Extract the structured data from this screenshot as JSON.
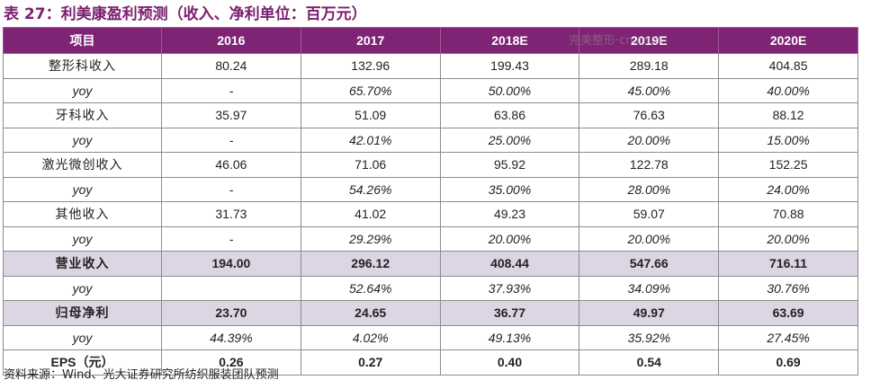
{
  "title": "表 27：利美康盈利预测（收入、净利单位：百万元）",
  "watermark": "完美整形·cn.com",
  "header": [
    "项目",
    "2016",
    "2017",
    "2018E",
    "2019E",
    "2020E"
  ],
  "rows": [
    [
      "整形科收入",
      "80.24",
      "132.96",
      "199.43",
      "289.18",
      "404.85"
    ],
    [
      "yoy",
      "-",
      "65.70%",
      "50.00%",
      "45.00%",
      "40.00%"
    ],
    [
      "牙科收入",
      "35.97",
      "51.09",
      "63.86",
      "76.63",
      "88.12"
    ],
    [
      "yoy",
      "-",
      "42.01%",
      "25.00%",
      "20.00%",
      "15.00%"
    ],
    [
      "激光微创收入",
      "46.06",
      "71.06",
      "95.92",
      "122.78",
      "152.25"
    ],
    [
      "yoy",
      "-",
      "54.26%",
      "35.00%",
      "28.00%",
      "24.00%"
    ],
    [
      "其他收入",
      "31.73",
      "41.02",
      "49.23",
      "59.07",
      "70.88"
    ],
    [
      "yoy",
      "-",
      "29.29%",
      "20.00%",
      "20.00%",
      "20.00%"
    ],
    [
      "营业收入",
      "194.00",
      "296.12",
      "408.44",
      "547.66",
      "716.11"
    ],
    [
      "yoy",
      "",
      "52.64%",
      "37.93%",
      "34.09%",
      "30.76%"
    ],
    [
      "归母净利",
      "23.70",
      "24.65",
      "36.77",
      "49.97",
      "63.69"
    ],
    [
      "yoy",
      "44.39%",
      "4.02%",
      "49.13%",
      "35.92%",
      "27.45%"
    ],
    [
      "EPS（元）",
      "0.26",
      "0.27",
      "0.40",
      "0.54",
      "0.69"
    ]
  ],
  "source": "资料来源：Wind、光大证券研究所纺织服装团队预测",
  "colors": {
    "header_bg": "#7f2475",
    "highlight_bg": "#dcd5e3",
    "title": "#7a1f6e"
  }
}
